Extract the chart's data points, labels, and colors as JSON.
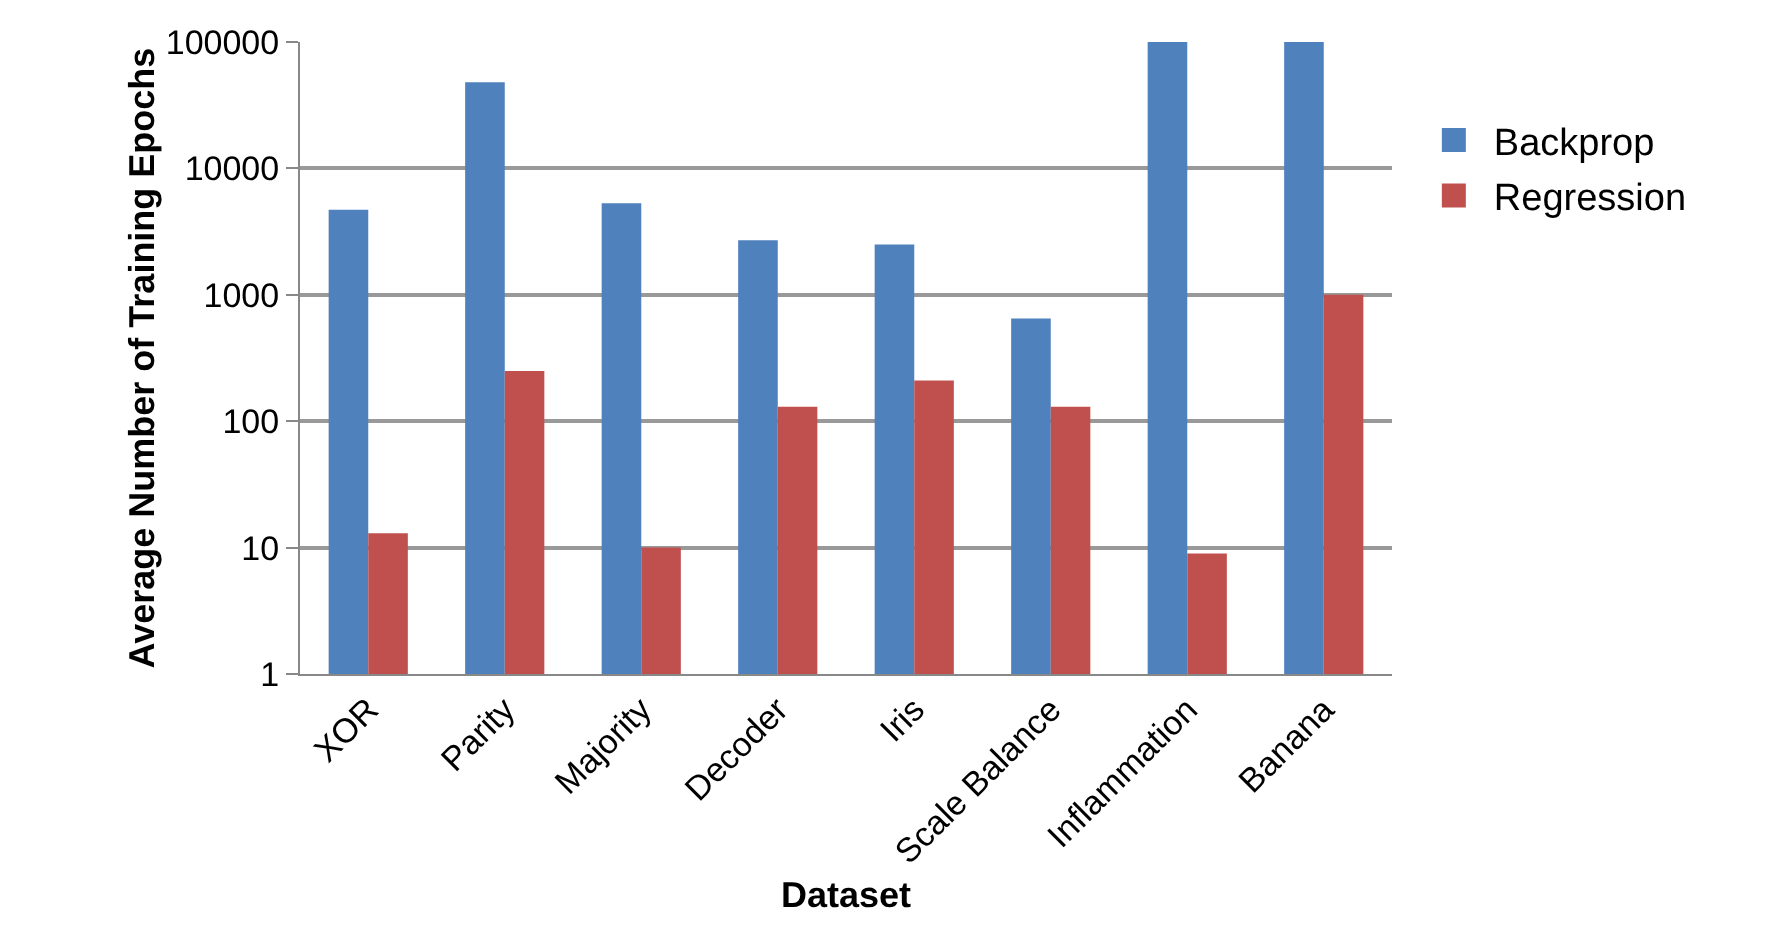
{
  "chart_data": {
    "type": "bar",
    "xlabel": "Dataset",
    "ylabel": "Average Number of Training Epochs",
    "categories": [
      "XOR",
      "Parity",
      "Majority",
      "Decoder",
      "Iris",
      "Scale Balance",
      "Inflammation",
      "Banana"
    ],
    "series": [
      {
        "name": "Backprop",
        "color": "#4f81bd",
        "values": [
          4700,
          48000,
          5300,
          2700,
          2500,
          650,
          100000,
          100000
        ]
      },
      {
        "name": "Regression",
        "color": "#c0504d",
        "values": [
          13,
          250,
          10,
          130,
          210,
          130,
          9,
          1000
        ]
      }
    ],
    "log": true,
    "ylim": [
      1,
      100000
    ],
    "yticks": [
      1,
      10,
      100,
      1000,
      10000,
      100000
    ],
    "grid": "y",
    "legend": "right"
  }
}
